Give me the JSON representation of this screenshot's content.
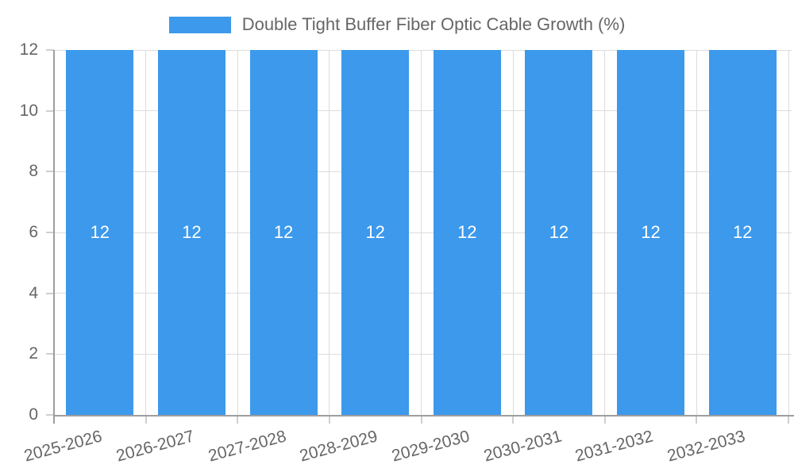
{
  "legend": {
    "label": "Double Tight Buffer Fiber Optic Cable Growth (%)"
  },
  "chart_data": {
    "type": "bar",
    "title": "Double Tight Buffer Fiber Optic Cable Growth (%)",
    "categories": [
      "2025-2026",
      "2026-2027",
      "2027-2028",
      "2028-2029",
      "2029-2030",
      "2030-2031",
      "2031-2032",
      "2032-2033"
    ],
    "values": [
      12,
      12,
      12,
      12,
      12,
      12,
      12,
      12
    ],
    "bar_labels": [
      "12",
      "12",
      "12",
      "12",
      "12",
      "12",
      "12",
      "12"
    ],
    "xlabel": "",
    "ylabel": "",
    "ylim": [
      0,
      12
    ],
    "y_ticks": [
      0,
      2,
      4,
      6,
      8,
      10,
      12
    ],
    "grid": true,
    "legend_position": "top-center",
    "x_label_rotation_deg": -15,
    "colors": {
      "bar": "#3C99EC",
      "bar_value_text": "#ffffff",
      "axis_line": "#9e9e9e",
      "grid_line": "#dcdcdc",
      "tick_mark": "#cfcfcf",
      "tick_text": "#666666",
      "legend_text": "#666666",
      "background": "#ffffff"
    }
  }
}
